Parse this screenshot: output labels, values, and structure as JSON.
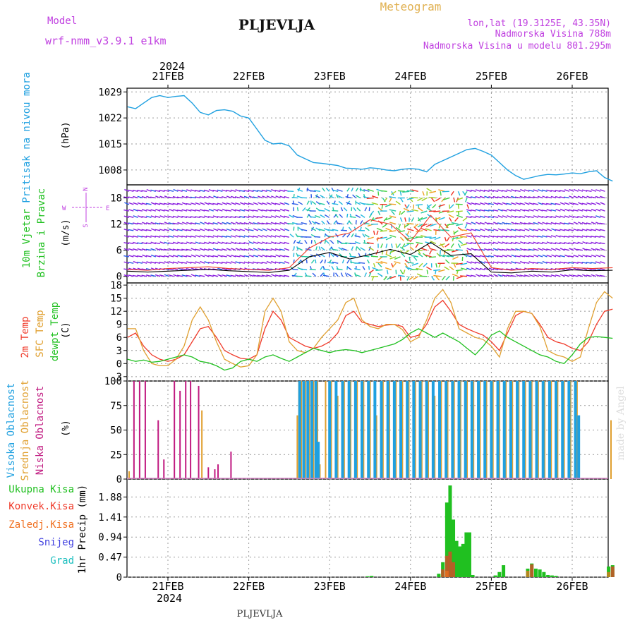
{
  "header": {
    "model_label": "Model",
    "model_name": "wrf-nmm_v3.9.1 e1km",
    "title": "Meteogram",
    "station": "PLJEVLJA",
    "coords": "lon,lat (19.3125E, 43.35N)",
    "altitude": "Nadmorska Visina 788m",
    "model_altitude": "Nadmorska Visina u modelu 801.295m"
  },
  "footer": {
    "station": "PLJEVLJA",
    "watermark": "made by Angel"
  },
  "colors": {
    "pressure": "#1fa0e0",
    "temp2m": "#f03a2a",
    "sfc": "#e0a030",
    "dewpt": "#20c020",
    "high_cloud": "#1fa0e0",
    "mid_cloud": "#e0a030",
    "low_cloud": "#c01a80",
    "precip_total": "#20c020",
    "precip_conv": "#f03a2a",
    "precip_frozen": "#f07020",
    "snow": "#4040e0",
    "hail": "#20c0c0",
    "wind_label": "#20c020",
    "compass": "#c040e0",
    "grid": "#999999"
  },
  "x_axis": {
    "year": "2024",
    "days": [
      "21FEB",
      "22FEB",
      "23FEB",
      "24FEB",
      "25FEB",
      "26FEB"
    ]
  },
  "chart_data": [
    {
      "type": "line",
      "panel": "pressure",
      "ylabel_left": "Pritisak na nivou mora",
      "unit": "(hPa)",
      "yticks": [
        "1029",
        "1022",
        "1015",
        "1008"
      ],
      "ylim": [
        1004,
        1030
      ],
      "x_unit": "days after 21FEB 00:00",
      "x": [
        -0.5,
        -0.4,
        -0.3,
        -0.2,
        -0.1,
        0.0,
        0.1,
        0.2,
        0.3,
        0.4,
        0.5,
        0.6,
        0.7,
        0.8,
        0.9,
        1.0,
        1.1,
        1.2,
        1.3,
        1.4,
        1.5,
        1.6,
        1.7,
        1.8,
        1.9,
        2.0,
        2.1,
        2.2,
        2.3,
        2.4,
        2.5,
        2.6,
        2.7,
        2.8,
        2.9,
        3.0,
        3.1,
        3.2,
        3.3,
        3.4,
        3.5,
        3.6,
        3.7,
        3.8,
        3.9,
        4.0,
        4.1,
        4.2,
        4.3,
        4.4,
        4.5,
        4.6,
        4.7,
        4.8,
        4.9,
        5.0,
        5.1,
        5.2,
        5.3,
        5.4,
        5.5
      ],
      "series": [
        {
          "values": [
            1025,
            1024.5,
            1026,
            1027.5,
            1028,
            1027.5,
            1027.8,
            1028,
            1026,
            1023.5,
            1022.8,
            1024,
            1024.2,
            1023.8,
            1022.5,
            1022,
            1019,
            1016,
            1015,
            1015.2,
            1014.5,
            1012,
            1011,
            1010,
            1009.8,
            1009.5,
            1009.2,
            1008.5,
            1008.4,
            1008.2,
            1008.6,
            1008.4,
            1008.0,
            1007.8,
            1008.2,
            1008.4,
            1008.2,
            1007.5,
            1009.5,
            1010.5,
            1011.5,
            1012.5,
            1013.5,
            1013.8,
            1013.0,
            1012.0,
            1010.0,
            1008.0,
            1006.5,
            1005.5,
            1006.0,
            1006.5,
            1006.8,
            1006.7,
            1006.9,
            1007.2,
            1007.0,
            1007.5,
            1007.8,
            1006.0,
            1005.0
          ]
        }
      ]
    },
    {
      "type": "line",
      "panel": "wind",
      "ylabel_left": [
        "10m Vjetar",
        "Brzina i Pravac"
      ],
      "unit": "(m/s)",
      "yticks": [
        "18",
        "12",
        "6",
        "0"
      ],
      "ylim": [
        -1.5,
        21
      ],
      "compass": {
        "n": "N",
        "s": "S",
        "w": "W",
        "e": "E"
      },
      "x_unit": "days after 21FEB 00:00",
      "x": [
        -0.5,
        -0.25,
        0.0,
        0.25,
        0.5,
        0.75,
        1.0,
        1.25,
        1.5,
        1.75,
        2.0,
        2.25,
        2.5,
        2.75,
        3.0,
        3.25,
        3.5,
        3.75,
        4.0,
        4.25,
        4.5,
        4.75,
        5.0,
        5.25,
        5.5
      ],
      "series": [
        {
          "values": [
            1.2,
            1.0,
            1.2,
            1.4,
            1.6,
            1.3,
            1.1,
            0.9,
            1.4,
            4.5,
            5.5,
            4.0,
            5.0,
            6.2,
            5.0,
            7.8,
            4.8,
            5.2,
            1.0,
            0.8,
            1.2,
            1.0,
            1.5,
            1.3,
            1.4
          ],
          "color": "#000000"
        },
        {
          "values": [
            1.6,
            1.4,
            1.8,
            2.0,
            2.2,
            1.8,
            1.6,
            1.4,
            2.0,
            6.5,
            9.0,
            10.0,
            13.0,
            12.0,
            8.0,
            14.0,
            9.0,
            10.0,
            2.0,
            1.4,
            1.8,
            1.6,
            2.0,
            1.8,
            2.0
          ],
          "color": "#f03a2a"
        }
      ]
    },
    {
      "type": "line",
      "panel": "temperature",
      "ylabel_left": [
        "2m Temp",
        "SFC Temp",
        "dewpt Temp"
      ],
      "unit": "(C)",
      "yticks": [
        "18",
        "15",
        "12",
        "9",
        "6",
        "3",
        "0",
        "-3"
      ],
      "ylim": [
        -4,
        18.5
      ],
      "x_unit": "days after 21FEB 00:00",
      "x": [
        -0.5,
        -0.4,
        -0.3,
        -0.2,
        -0.1,
        0.0,
        0.1,
        0.2,
        0.3,
        0.4,
        0.5,
        0.6,
        0.7,
        0.8,
        0.9,
        1.0,
        1.1,
        1.2,
        1.3,
        1.4,
        1.5,
        1.6,
        1.7,
        1.8,
        1.9,
        2.0,
        2.1,
        2.2,
        2.3,
        2.4,
        2.5,
        2.6,
        2.7,
        2.8,
        2.9,
        3.0,
        3.1,
        3.2,
        3.3,
        3.4,
        3.5,
        3.6,
        3.7,
        3.8,
        3.9,
        4.0,
        4.1,
        4.2,
        4.3,
        4.4,
        4.5,
        4.6,
        4.7,
        4.8,
        4.9,
        5.0,
        5.1,
        5.2,
        5.3,
        5.4,
        5.5
      ],
      "series": [
        {
          "name": "2m Temp",
          "values": [
            6,
            7,
            4,
            2,
            1,
            0.5,
            1,
            2,
            5,
            8,
            8.5,
            6,
            3,
            2,
            1.2,
            1.0,
            2,
            8,
            12,
            10,
            6,
            5,
            4,
            3.5,
            4,
            5,
            7,
            11,
            12,
            9.5,
            9,
            8.5,
            8.8,
            9,
            8.5,
            6,
            6.5,
            9,
            13,
            14.5,
            12,
            9,
            8,
            7.2,
            6.5,
            5,
            3,
            7,
            11,
            12,
            11.5,
            9,
            6,
            5,
            4.5,
            3.5,
            3,
            5,
            9,
            12,
            12.5
          ]
        },
        {
          "name": "SFC Temp",
          "values": [
            8,
            8,
            3,
            0,
            -0.5,
            -0.5,
            1,
            4,
            10,
            13,
            10,
            5,
            1,
            0,
            -0.8,
            -0.5,
            2,
            12,
            15,
            12,
            5,
            3,
            2.5,
            3.5,
            6,
            8,
            10,
            14,
            15,
            10,
            8.5,
            8,
            9,
            9,
            7.8,
            5,
            6,
            10,
            15,
            17,
            14,
            8,
            7,
            6,
            5.5,
            4,
            1.5,
            8,
            12,
            12,
            11.5,
            8.5,
            3,
            2,
            1.5,
            0.5,
            1.5,
            8,
            14,
            16.5,
            15
          ]
        },
        {
          "name": "dewpt Temp",
          "values": [
            1,
            0.5,
            0.8,
            0.3,
            0.5,
            1,
            1.5,
            2,
            1.5,
            0.5,
            0.2,
            -0.5,
            -1.5,
            -1.0,
            0.5,
            1.0,
            0.5,
            1.5,
            2.0,
            1.2,
            0.5,
            1.5,
            2.5,
            3.5,
            3.0,
            2.5,
            3.0,
            3.2,
            3.0,
            2.5,
            3.0,
            3.5,
            4.0,
            4.5,
            5.5,
            7.0,
            8.0,
            7.0,
            6.0,
            7.0,
            6.0,
            5.0,
            3.5,
            2.0,
            4.0,
            6.5,
            7.5,
            6.0,
            5.0,
            4.0,
            3.0,
            2.0,
            1.5,
            0.5,
            0.0,
            2.0,
            4.5,
            6.0,
            6.2,
            6.0,
            5.8
          ]
        }
      ]
    },
    {
      "type": "bar",
      "panel": "cloud",
      "ylabel_left": [
        "Visoka Oblacnost",
        "Srednja Oblacnost",
        "Niska Oblacnost"
      ],
      "unit": "(%)",
      "yticks": [
        "100",
        "75",
        "50",
        "25",
        "0"
      ],
      "ylim": [
        0,
        100
      ],
      "x_unit": "days after 21FEB 00:00",
      "series": [
        {
          "name": "Niska Oblacnost",
          "x": [
            -0.42,
            -0.35,
            -0.28,
            -0.12,
            -0.05,
            0.08,
            0.15,
            0.22,
            0.28,
            0.38,
            0.5,
            0.58,
            0.62,
            0.78
          ],
          "values": [
            100,
            100,
            100,
            60,
            20,
            100,
            90,
            100,
            100,
            95,
            12,
            10,
            15,
            28
          ]
        },
        {
          "name": "Srednja Oblacnost",
          "x": [
            -0.48,
            0.42,
            1.6,
            1.62,
            1.65,
            1.7,
            1.75,
            1.8,
            1.85,
            1.88,
            1.95,
            2.02,
            2.1,
            2.18,
            2.26,
            2.34,
            2.42,
            2.5,
            2.58,
            2.66,
            2.74,
            2.82,
            2.9,
            2.98,
            3.06,
            3.14,
            3.22,
            3.3,
            3.38,
            3.46,
            3.54,
            3.62,
            3.7,
            3.78,
            3.86,
            3.94,
            4.02,
            4.1,
            4.18,
            4.26,
            4.34,
            4.42,
            4.5,
            4.58,
            4.66,
            4.74,
            4.82,
            4.9,
            4.98,
            5.06,
            5.48
          ],
          "values": [
            8,
            70,
            65,
            100,
            100,
            100,
            100,
            100,
            100,
            15,
            100,
            100,
            85,
            100,
            100,
            100,
            100,
            100,
            65,
            100,
            100,
            100,
            100,
            100,
            100,
            100,
            100,
            85,
            100,
            100,
            100,
            100,
            100,
            100,
            100,
            100,
            100,
            100,
            100,
            100,
            100,
            100,
            100,
            100,
            100,
            100,
            100,
            100,
            100,
            100,
            60
          ]
        },
        {
          "name": "Visoka Oblacnost",
          "x": [
            1.63,
            1.68,
            1.73,
            1.78,
            1.83,
            1.86,
            2.0,
            2.08,
            2.16,
            2.24,
            2.32,
            2.4,
            2.48,
            2.56,
            2.64,
            2.72,
            2.8,
            2.88,
            2.96,
            3.04,
            3.12,
            3.2,
            3.28,
            3.36,
            3.44,
            3.52,
            3.6,
            3.68,
            3.76,
            3.84,
            3.92,
            4.0,
            4.08,
            4.16,
            4.24,
            4.32,
            4.4,
            4.48,
            4.56,
            4.64,
            4.72,
            4.8,
            4.88,
            4.96,
            5.04,
            5.08
          ],
          "values": [
            100,
            100,
            100,
            100,
            100,
            38,
            100,
            100,
            100,
            100,
            100,
            100,
            100,
            100,
            100,
            100,
            100,
            100,
            100,
            100,
            100,
            100,
            100,
            100,
            100,
            100,
            100,
            100,
            100,
            100,
            100,
            100,
            100,
            100,
            100,
            100,
            100,
            100,
            100,
            100,
            100,
            100,
            100,
            100,
            100,
            65
          ]
        }
      ]
    },
    {
      "type": "bar",
      "panel": "precipitation",
      "legend": [
        "Ukupna Kisa",
        "Konvek.Kisa",
        "Zaledj.Kisa",
        "Snijeg",
        "Grad"
      ],
      "ylabel_left": "1hr Precip",
      "unit": "(mm)",
      "yticks": [
        "1.88",
        "1.41",
        "0.94",
        "0.47",
        "0"
      ],
      "ylim": [
        0,
        2.3
      ],
      "x_unit": "days after 21FEB 00:00",
      "series": [
        {
          "name": "Ukupna Kisa",
          "x": [
            2.47,
            2.52,
            3.35,
            3.4,
            3.45,
            3.49,
            3.53,
            3.57,
            3.61,
            3.65,
            3.69,
            3.73,
            3.77,
            4.05,
            4.1,
            4.15,
            4.45,
            4.5,
            4.55,
            4.6,
            4.65,
            4.7,
            4.75,
            4.8,
            5.45,
            5.5
          ],
          "values": [
            0.02,
            0.03,
            0.08,
            0.35,
            1.75,
            2.15,
            1.35,
            0.85,
            0.72,
            0.78,
            1.05,
            1.05,
            0.05,
            0.04,
            0.12,
            0.28,
            0.2,
            0.32,
            0.2,
            0.18,
            0.12,
            0.05,
            0.04,
            0.03,
            0.25,
            0.28
          ]
        },
        {
          "name": "Konvek.Kisa",
          "x": [
            3.4,
            3.45,
            3.49,
            3.53,
            4.5,
            5.5
          ],
          "values": [
            0.18,
            0.5,
            0.6,
            0.35,
            0.3,
            0.25
          ]
        },
        {
          "name": "Zaledj.Kisa",
          "x": [
            3.45,
            4.45,
            5.45
          ],
          "values": [
            0.15,
            0.15,
            0.12
          ]
        },
        {
          "name": "Snijeg",
          "x": [],
          "values": []
        },
        {
          "name": "Grad",
          "x": [],
          "values": []
        }
      ]
    }
  ]
}
